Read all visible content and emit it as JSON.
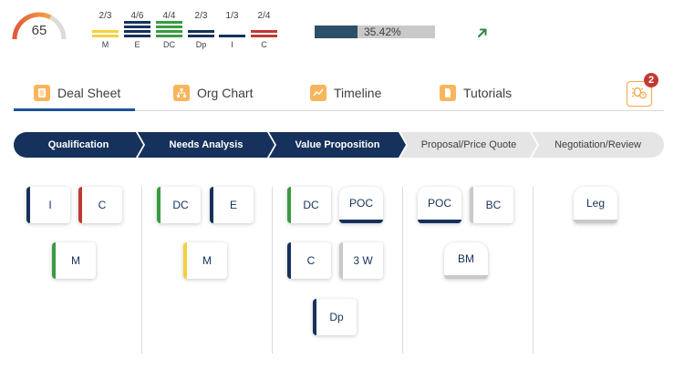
{
  "score": {
    "value": "65",
    "gauge_fraction": 0.65
  },
  "metrics": [
    {
      "fraction": "2/3",
      "label": "M",
      "color": "#f4d03f"
    },
    {
      "fraction": "4/6",
      "label": "E",
      "color": "#16325c"
    },
    {
      "fraction": "4/4",
      "label": "DC",
      "color": "#3a9b42"
    },
    {
      "fraction": "2/3",
      "label": "Dp",
      "color": "#16325c"
    },
    {
      "fraction": "1/3",
      "label": "I",
      "color": "#16325c"
    },
    {
      "fraction": "2/4",
      "label": "C",
      "color": "#c23934"
    }
  ],
  "progress": {
    "text": "35.42%",
    "fraction": 0.3542
  },
  "trend": {
    "icon": "arrow-up-right-icon",
    "color": "#2e844a"
  },
  "tabs": [
    {
      "label": "Deal Sheet",
      "icon": "document-icon",
      "active": true
    },
    {
      "label": "Org Chart",
      "icon": "hierarchy-icon",
      "active": false
    },
    {
      "label": "Timeline",
      "icon": "line-chart-icon",
      "active": false
    },
    {
      "label": "Tutorials",
      "icon": "file-icon",
      "active": false
    }
  ],
  "notifications": {
    "count": "2",
    "icon": "bug-alert-icon"
  },
  "stages": [
    {
      "label": "Qualification",
      "complete": true
    },
    {
      "label": "Needs Analysis",
      "complete": true
    },
    {
      "label": "Value Proposition",
      "complete": true
    },
    {
      "label": "Proposal/Price Quote",
      "complete": false
    },
    {
      "label": "Negotiation/Review",
      "complete": false
    }
  ],
  "columns": [
    {
      "cards": [
        "I",
        "C",
        "M"
      ]
    },
    {
      "cards": [
        "DC",
        "E",
        "M"
      ]
    },
    {
      "cards": [
        "DC",
        "POC",
        "C",
        "3 W",
        "Dp"
      ]
    },
    {
      "cards": [
        "POC",
        "BC",
        "BM"
      ]
    },
    {
      "cards": [
        "Leg"
      ]
    }
  ],
  "colors": {
    "navy": "#16325c",
    "accent": "#1b5297",
    "orange": "#f9b55b",
    "stage_todo": "#e5e5e5"
  }
}
